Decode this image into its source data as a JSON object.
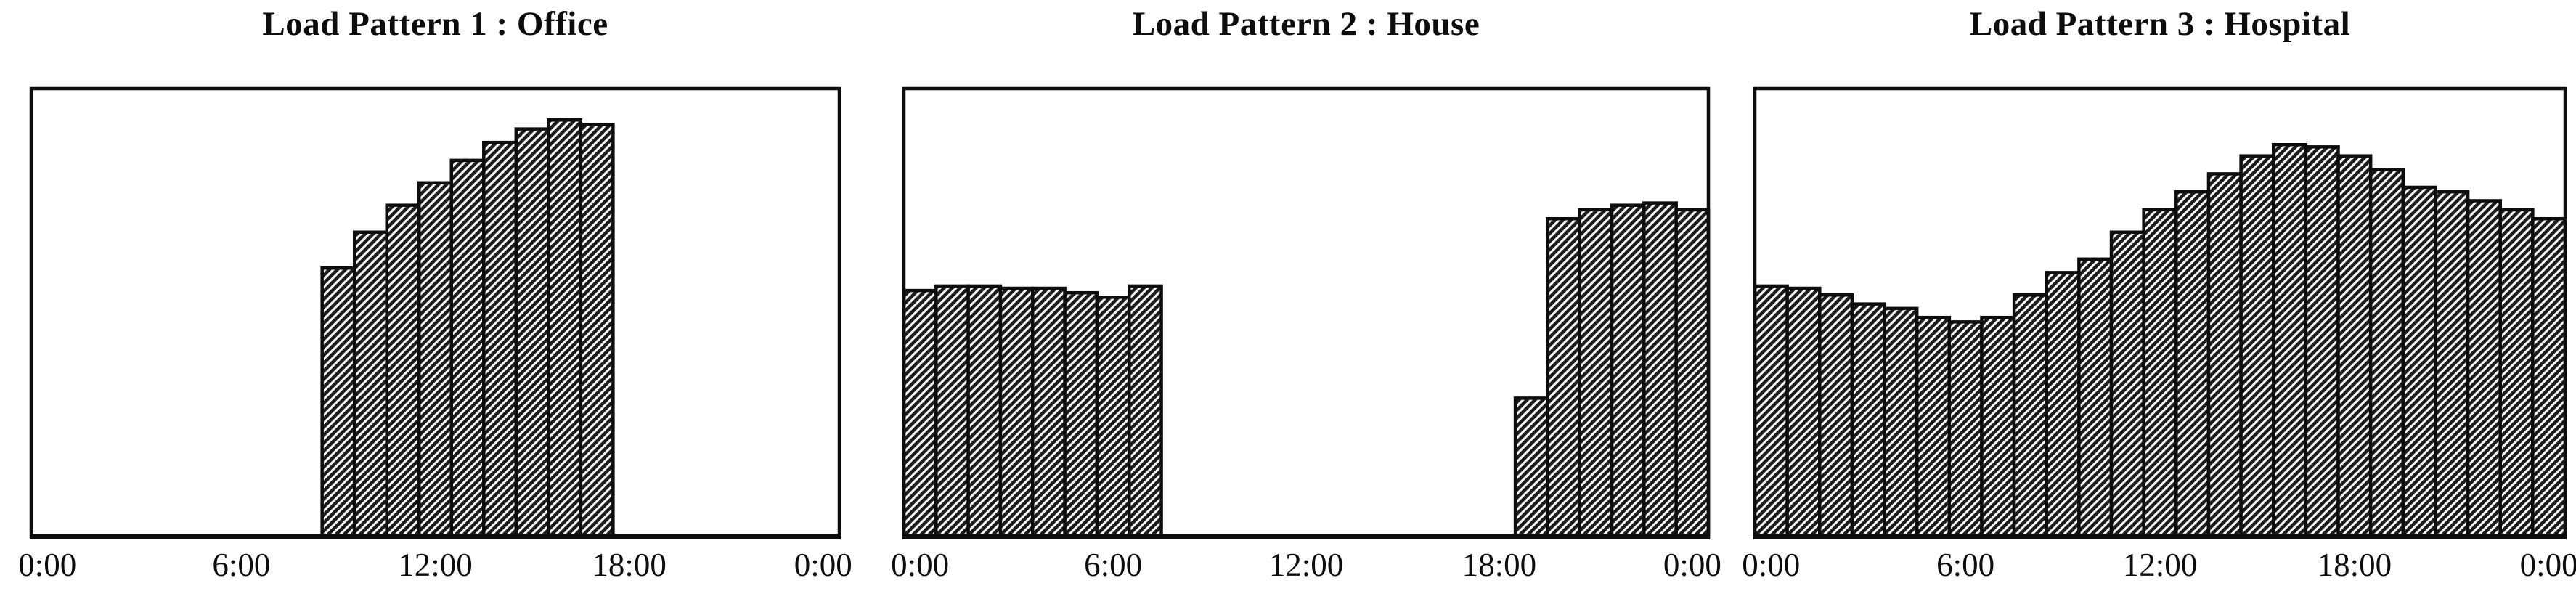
{
  "page": {
    "background_color": "#ffffff",
    "ink_color": "#0d0d0d",
    "hatch_style": "diagonal-forward-slash"
  },
  "chart_data": [
    {
      "type": "bar",
      "title": "Load Pattern 1 : Office",
      "xlabel": "",
      "ylabel": "",
      "x_range_hours": [
        -0.5,
        24.5
      ],
      "ylim": [
        0,
        1
      ],
      "bar_width_hours": 1,
      "grid": false,
      "legend": false,
      "y_axis_labels_shown": false,
      "xticks": [
        {
          "hour": 0,
          "label": "0:00"
        },
        {
          "hour": 6,
          "label": "6:00"
        },
        {
          "hour": 12,
          "label": "12:00"
        },
        {
          "hour": 18,
          "label": "18:00"
        },
        {
          "hour": 24,
          "label": "0:00"
        }
      ],
      "hours": [
        9,
        10,
        11,
        12,
        13,
        14,
        15,
        16,
        17
      ],
      "values_by_hour": [
        null,
        null,
        null,
        null,
        null,
        null,
        null,
        null,
        null,
        0.6,
        0.68,
        0.74,
        0.79,
        0.84,
        0.88,
        0.91,
        0.93,
        0.92,
        null,
        null,
        null,
        null,
        null,
        null,
        null
      ]
    },
    {
      "type": "bar",
      "title": "Load Pattern 2 : House",
      "xlabel": "",
      "ylabel": "",
      "x_range_hours": [
        -0.5,
        24.5
      ],
      "ylim": [
        0,
        1
      ],
      "bar_width_hours": 1,
      "grid": false,
      "legend": false,
      "y_axis_labels_shown": false,
      "xticks": [
        {
          "hour": 0,
          "label": "0:00"
        },
        {
          "hour": 6,
          "label": "6:00"
        },
        {
          "hour": 12,
          "label": "12:00"
        },
        {
          "hour": 18,
          "label": "18:00"
        },
        {
          "hour": 24,
          "label": "0:00"
        }
      ],
      "hours": [
        0,
        1,
        2,
        3,
        4,
        5,
        6,
        7,
        19,
        20,
        21,
        22,
        23,
        24
      ],
      "values_by_hour": [
        0.55,
        0.56,
        0.56,
        0.555,
        0.555,
        0.545,
        0.535,
        0.56,
        null,
        null,
        null,
        null,
        null,
        null,
        null,
        null,
        null,
        null,
        null,
        0.31,
        0.71,
        0.73,
        0.74,
        0.745,
        0.73
      ]
    },
    {
      "type": "bar",
      "title": "Load Pattern 3 : Hospital",
      "xlabel": "",
      "ylabel": "",
      "x_range_hours": [
        -0.5,
        24.5
      ],
      "ylim": [
        0,
        1
      ],
      "bar_width_hours": 1,
      "grid": false,
      "legend": false,
      "y_axis_labels_shown": false,
      "xticks": [
        {
          "hour": 0,
          "label": "0:00"
        },
        {
          "hour": 6,
          "label": "6:00"
        },
        {
          "hour": 12,
          "label": "12:00"
        },
        {
          "hour": 18,
          "label": "18:00"
        },
        {
          "hour": 24,
          "label": "0:00"
        }
      ],
      "hours": [
        0,
        1,
        2,
        3,
        4,
        5,
        6,
        7,
        8,
        9,
        10,
        11,
        12,
        13,
        14,
        15,
        16,
        17,
        18,
        19,
        20,
        21,
        22,
        23,
        24
      ],
      "values_by_hour": [
        0.56,
        0.555,
        0.54,
        0.52,
        0.51,
        0.49,
        0.48,
        0.49,
        0.54,
        0.59,
        0.62,
        0.68,
        0.73,
        0.77,
        0.81,
        0.85,
        0.875,
        0.87,
        0.85,
        0.82,
        0.78,
        0.77,
        0.75,
        0.73,
        0.71
      ]
    }
  ]
}
